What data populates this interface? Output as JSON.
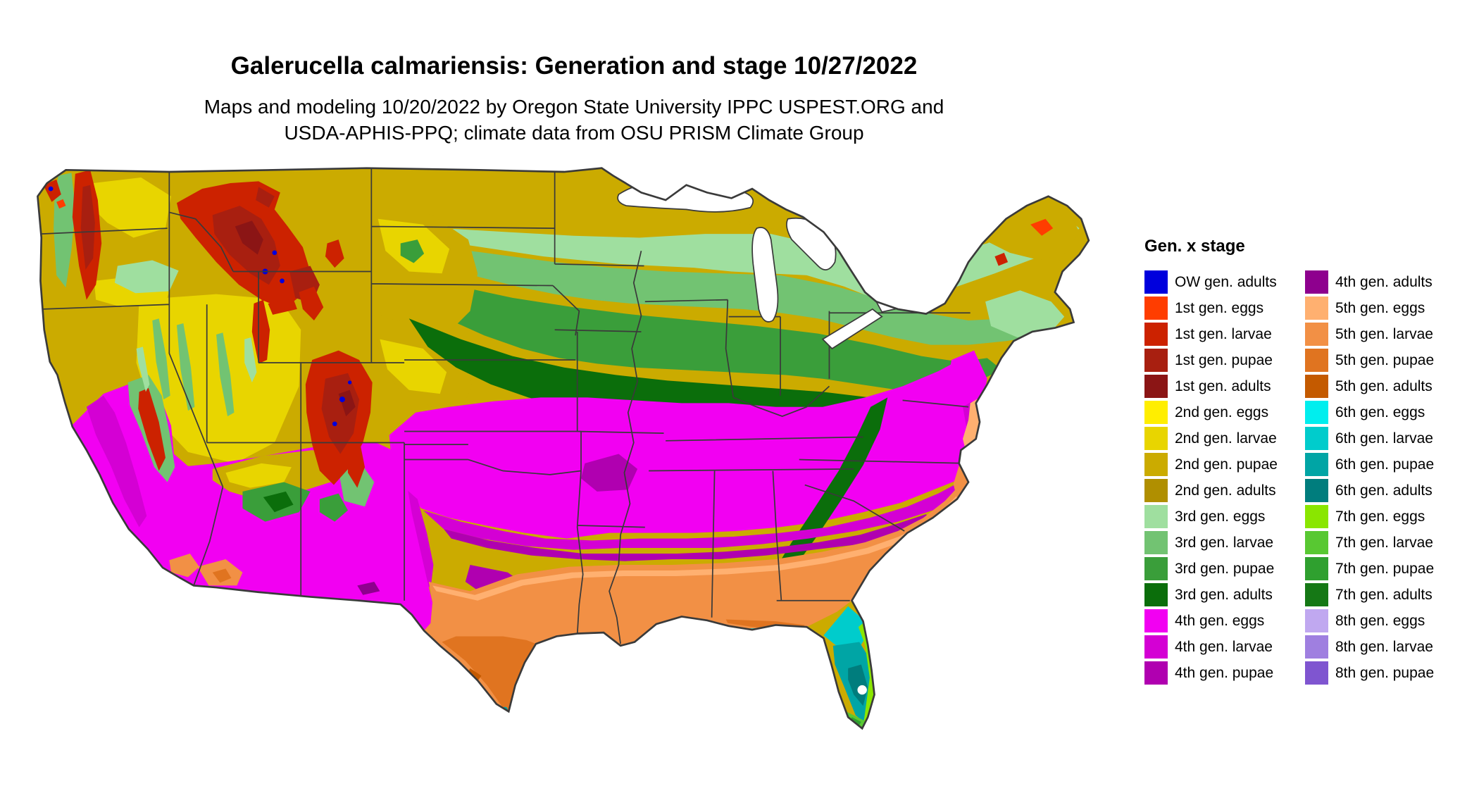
{
  "title": "Galerucella calmariensis: Generation and stage 10/27/2022",
  "subtitle": {
    "line1": "Maps and modeling 10/20/2022 by Oregon State University IPPC USPEST.ORG and",
    "line2": "USDA-APHIS-PPQ; climate data from OSU PRISM Climate Group"
  },
  "legend": {
    "title": "Gen. x stage",
    "columns": [
      {
        "items": [
          {
            "label": "OW gen. adults",
            "color_key": "ow_adults"
          },
          {
            "label": "1st gen. eggs",
            "color_key": "gen1_eggs"
          },
          {
            "label": "1st gen. larvae",
            "color_key": "gen1_larvae"
          },
          {
            "label": "1st gen. pupae",
            "color_key": "gen1_pupae"
          },
          {
            "label": "1st gen. adults",
            "color_key": "gen1_adults"
          },
          {
            "label": "2nd gen. eggs",
            "color_key": "gen2_eggs"
          },
          {
            "label": "2nd gen. larvae",
            "color_key": "gen2_larvae"
          },
          {
            "label": "2nd gen. pupae",
            "color_key": "gen2_pupae"
          },
          {
            "label": "2nd gen. adults",
            "color_key": "gen2_adults"
          },
          {
            "label": "3rd gen. eggs",
            "color_key": "gen3_eggs"
          },
          {
            "label": "3rd gen. larvae",
            "color_key": "gen3_larvae"
          },
          {
            "label": "3rd gen. pupae",
            "color_key": "gen3_pupae"
          },
          {
            "label": "3rd gen. adults",
            "color_key": "gen3_adults"
          },
          {
            "label": "4th gen. eggs",
            "color_key": "gen4_eggs"
          },
          {
            "label": "4th gen. larvae",
            "color_key": "gen4_larvae"
          },
          {
            "label": "4th gen. pupae",
            "color_key": "gen4_pupae"
          }
        ]
      },
      {
        "items": [
          {
            "label": "4th gen. adults",
            "color_key": "gen4_adults"
          },
          {
            "label": "5th gen. eggs",
            "color_key": "gen5_eggs"
          },
          {
            "label": "5th gen. larvae",
            "color_key": "gen5_larvae"
          },
          {
            "label": "5th gen. pupae",
            "color_key": "gen5_pupae"
          },
          {
            "label": "5th gen. adults",
            "color_key": "gen5_adults"
          },
          {
            "label": "6th gen. eggs",
            "color_key": "gen6_eggs"
          },
          {
            "label": "6th gen. larvae",
            "color_key": "gen6_larvae"
          },
          {
            "label": "6th gen. pupae",
            "color_key": "gen6_pupae"
          },
          {
            "label": "6th gen. adults",
            "color_key": "gen6_adults"
          },
          {
            "label": "7th gen. eggs",
            "color_key": "gen7_eggs"
          },
          {
            "label": "7th gen. larvae",
            "color_key": "gen7_larvae"
          },
          {
            "label": "7th gen. pupae",
            "color_key": "gen7_pupae"
          },
          {
            "label": "7th gen. adults",
            "color_key": "gen7_adults"
          },
          {
            "label": "8th gen. eggs",
            "color_key": "gen8_eggs"
          },
          {
            "label": "8th gen. larvae",
            "color_key": "gen8_larvae"
          },
          {
            "label": "8th gen. pupae",
            "color_key": "gen8_pupae"
          }
        ]
      }
    ]
  },
  "map": {
    "border_color": "#3a3a3a",
    "water_color": "#ffffff",
    "palette": {
      "ow_adults": "#0000dd",
      "gen1_eggs": "#ff3d00",
      "gen1_larvae": "#cc2200",
      "gen1_pupae": "#a81f10",
      "gen1_adults": "#8b1515",
      "gen2_eggs": "#ffee00",
      "gen2_larvae": "#e8d500",
      "gen2_pupae": "#cbab00",
      "gen2_adults": "#b08f00",
      "gen3_eggs": "#9fdf9f",
      "gen3_larvae": "#72c372",
      "gen3_pupae": "#3a9e3a",
      "gen3_adults": "#0b6e0b",
      "gen4_eggs": "#f200f2",
      "gen4_larvae": "#d400d4",
      "gen4_pupae": "#b000b0",
      "gen4_adults": "#8e008e",
      "gen5_eggs": "#ffb070",
      "gen5_larvae": "#f29045",
      "gen5_pupae": "#e07420",
      "gen5_adults": "#c45a00",
      "gen6_eggs": "#00eeee",
      "gen6_larvae": "#00cccc",
      "gen6_pupae": "#00a5a5",
      "gen6_adults": "#007d7d",
      "gen7_eggs": "#8ae600",
      "gen7_larvae": "#58c832",
      "gen7_pupae": "#2fa02f",
      "gen7_adults": "#157815",
      "gen8_eggs": "#c0a8f0",
      "gen8_larvae": "#9f7fe0",
      "gen8_pupae": "#7f55d0"
    }
  }
}
